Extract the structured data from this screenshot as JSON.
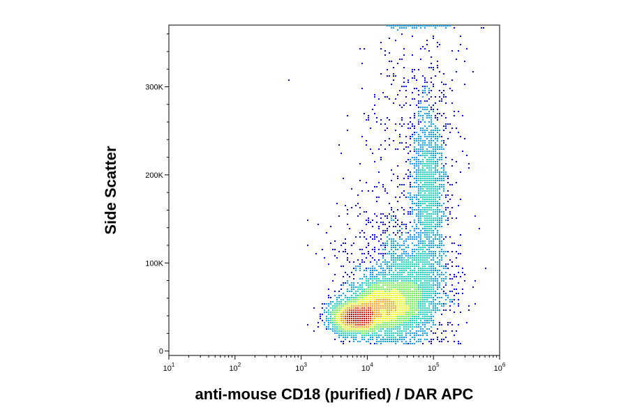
{
  "chart_data": {
    "type": "scatter",
    "subtype": "flow-cytometry-density-plot",
    "title": "",
    "xlabel": "anti-mouse CD18 (purified) / DAR APC",
    "ylabel": "Side Scatter",
    "x_scale": "log",
    "xlim": [
      10,
      1000000
    ],
    "ylim": [
      -5000,
      370000
    ],
    "x_ticks": [
      {
        "base": "10",
        "exp": "1",
        "value": 10
      },
      {
        "base": "10",
        "exp": "2",
        "value": 100
      },
      {
        "base": "10",
        "exp": "3",
        "value": 1000
      },
      {
        "base": "10",
        "exp": "4",
        "value": 10000
      },
      {
        "base": "10",
        "exp": "5",
        "value": 100000
      },
      {
        "base": "10",
        "exp": "6",
        "value": 1000000
      }
    ],
    "y_ticks": [
      {
        "label": "0",
        "value": 0
      },
      {
        "label": "100K",
        "value": 100000
      },
      {
        "label": "200K",
        "value": 200000
      },
      {
        "label": "300K",
        "value": 300000
      }
    ],
    "grid": false,
    "legend": "none",
    "colormap": [
      "#0000ff",
      "#00a0ff",
      "#00e0c0",
      "#60ff40",
      "#f0ff00",
      "#ffa000",
      "#ff2000",
      "#d00000"
    ],
    "populations": [
      {
        "name_hidden": true,
        "x_center": 6500,
        "y_center": 38000,
        "density": "highest"
      },
      {
        "name_hidden": true,
        "x_center": 20000,
        "y_center": 50000,
        "density": "high"
      },
      {
        "name_hidden": true,
        "x_center": 90000,
        "y_center": 180000,
        "density": "medium"
      }
    ]
  }
}
